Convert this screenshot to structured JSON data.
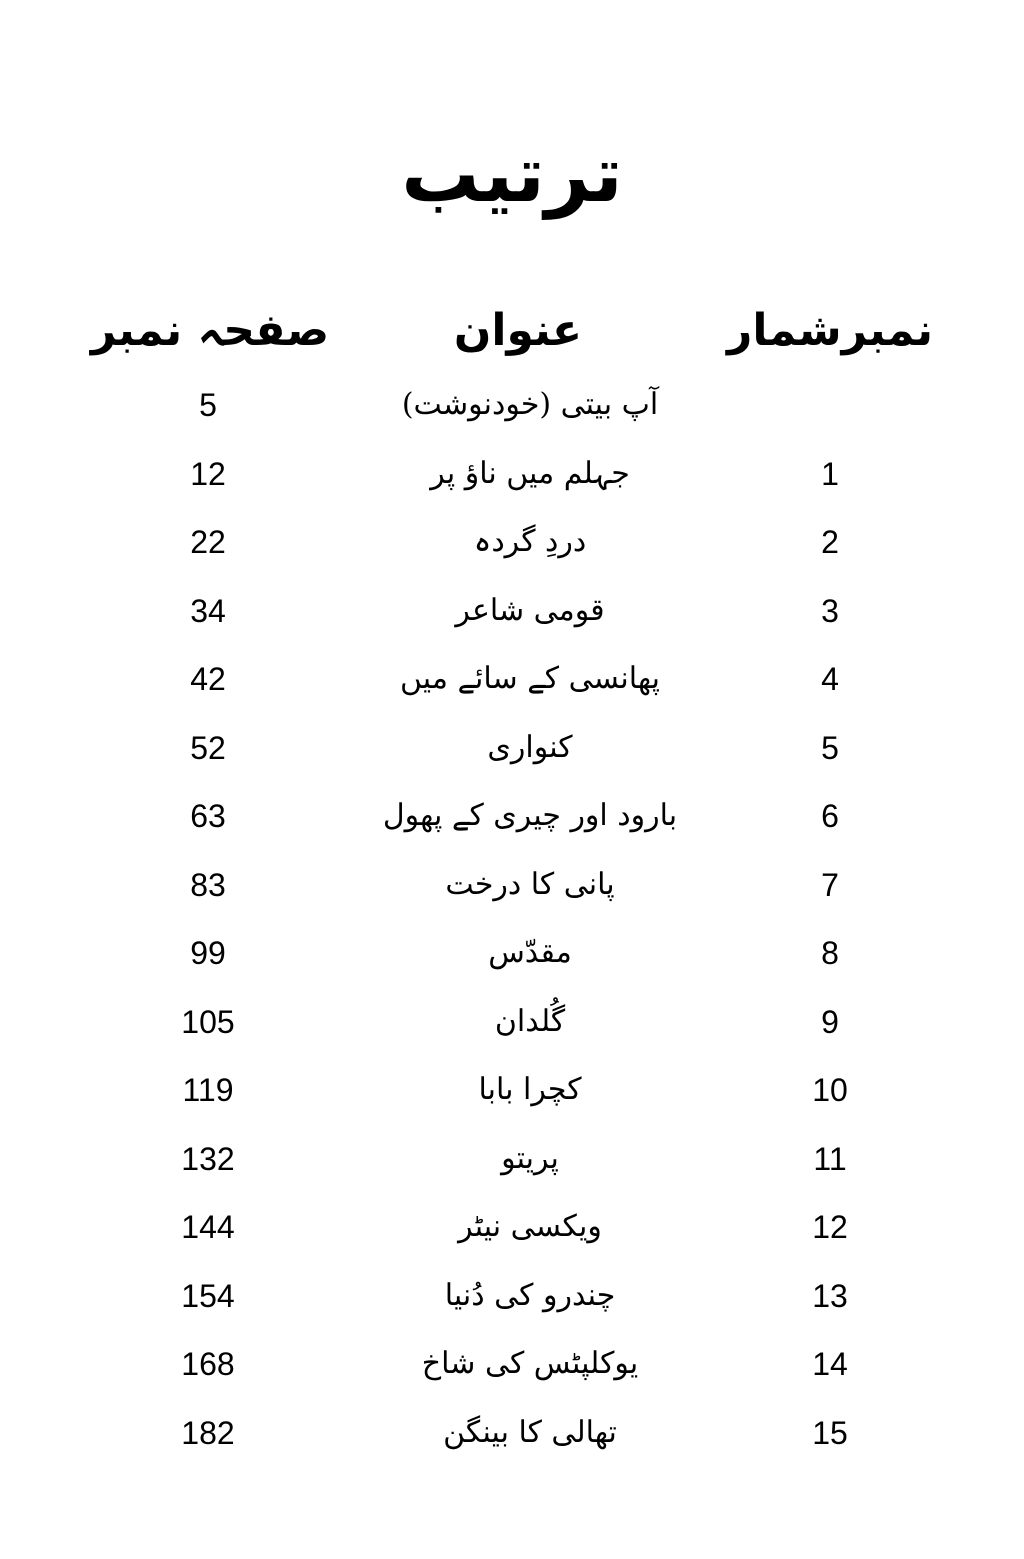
{
  "title": "ترتیب",
  "headers": {
    "serial": "نمبرشمار",
    "heading": "عنوان",
    "page": "صفحہ نمبر"
  },
  "entries": [
    {
      "serial": "",
      "heading": "آپ بیتی (خودنوشت)",
      "page": "5"
    },
    {
      "serial": "1",
      "heading": "جہلم میں ناؤ پر",
      "page": "12"
    },
    {
      "serial": "2",
      "heading": "دردِ گردہ",
      "page": "22"
    },
    {
      "serial": "3",
      "heading": "قومی شاعر",
      "page": "34"
    },
    {
      "serial": "4",
      "heading": "پھانسی کے سائے میں",
      "page": "42"
    },
    {
      "serial": "5",
      "heading": "کنواری",
      "page": "52"
    },
    {
      "serial": "6",
      "heading": "بارود اور چیری کے پھول",
      "page": "63"
    },
    {
      "serial": "7",
      "heading": "پانی کا درخت",
      "page": "83"
    },
    {
      "serial": "8",
      "heading": "مقدّس",
      "page": "99"
    },
    {
      "serial": "9",
      "heading": "گُلدان",
      "page": "105"
    },
    {
      "serial": "10",
      "heading": "کچرا بابا",
      "page": "119"
    },
    {
      "serial": "11",
      "heading": "پریتو",
      "page": "132"
    },
    {
      "serial": "12",
      "heading": "ویکسی نیٹر",
      "page": "144"
    },
    {
      "serial": "13",
      "heading": "چندرو کی دُنیا",
      "page": "154"
    },
    {
      "serial": "14",
      "heading": "یوکلپٹس کی شاخ",
      "page": "168"
    },
    {
      "serial": "15",
      "heading": "تھالی کا بینگن",
      "page": "182"
    }
  ]
}
